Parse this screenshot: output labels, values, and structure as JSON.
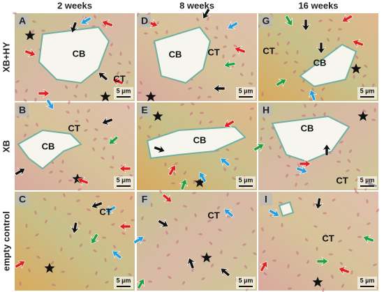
{
  "columns": [
    "2 weeks",
    "8 weeks",
    "16 weeks"
  ],
  "rows": [
    "XB+HY",
    "XB",
    "empty control"
  ],
  "panels": [
    {
      "letter": "A",
      "labels": [
        "CB",
        "CT"
      ],
      "scale": "5 µm"
    },
    {
      "letter": "D",
      "labels": [
        "CB",
        "CT"
      ],
      "scale": "5 µm"
    },
    {
      "letter": "G",
      "labels": [
        "CT",
        "CB"
      ],
      "scale": "5 µm"
    },
    {
      "letter": "B",
      "labels": [
        "CB",
        "CT"
      ],
      "scale": "5 µm"
    },
    {
      "letter": "E",
      "labels": [
        "CB"
      ],
      "scale": "5 µm"
    },
    {
      "letter": "H",
      "labels": [
        "CB",
        "CT"
      ],
      "scale": "5 µm"
    },
    {
      "letter": "C",
      "labels": [
        "CT"
      ],
      "scale": "5 µm"
    },
    {
      "letter": "F",
      "labels": [
        "CT"
      ],
      "scale": "5 µm"
    },
    {
      "letter": "I",
      "labels": [
        "CT"
      ],
      "scale": "5 µm"
    }
  ]
}
